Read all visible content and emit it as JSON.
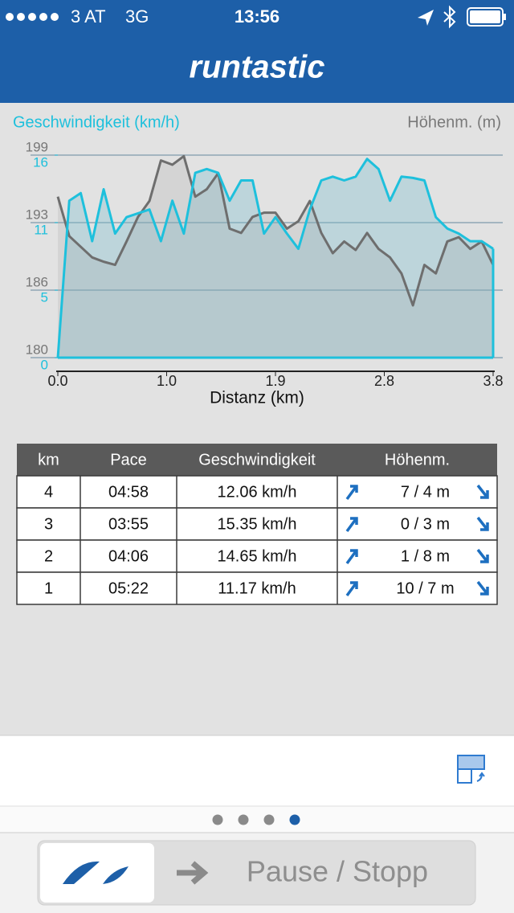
{
  "status_bar": {
    "carrier": "3 AT",
    "network": "3G",
    "time": "13:56"
  },
  "header": {
    "logo": "runtastic"
  },
  "chart_data": {
    "type": "line",
    "ylabel": "Geschwindigkeit (km/h)",
    "y2label": "Höhenm. (m)",
    "xlabel": "Distanz (km)",
    "x": [
      0,
      0.1,
      0.2,
      0.3,
      0.4,
      0.5,
      0.6,
      0.7,
      0.8,
      0.9,
      1.0,
      1.1,
      1.2,
      1.3,
      1.4,
      1.5,
      1.6,
      1.7,
      1.8,
      1.9,
      2.0,
      2.1,
      2.2,
      2.3,
      2.4,
      2.5,
      2.6,
      2.7,
      2.8,
      2.9,
      3.0,
      3.1,
      3.2,
      3.3,
      3.4,
      3.5,
      3.6,
      3.7,
      3.8
    ],
    "series": [
      {
        "color": "#1ec0dc",
        "fill": "rgba(120,190,205,0.35)",
        "values": [
          0,
          12.4,
          13.0,
          9.2,
          13.3,
          9.8,
          11.1,
          11.4,
          11.7,
          9.2,
          12.4,
          9.8,
          14.6,
          14.9,
          14.6,
          12.4,
          14.0,
          14.0,
          9.8,
          11.1,
          9.8,
          8.6,
          11.7,
          14.0,
          14.3,
          14.0,
          14.3,
          15.7,
          14.9,
          12.4,
          14.3,
          14.2,
          14.0,
          11.1,
          10.2,
          9.8,
          9.2,
          9.2,
          8.6
        ]
      },
      {
        "color": "#6e6e6e",
        "fill": "rgba(150,150,150,0.18)",
        "axis": "y2",
        "values": [
          195.1,
          191.4,
          190.4,
          189.4,
          189.0,
          188.7,
          190.9,
          193.2,
          194.7,
          198.5,
          198.1,
          198.9,
          195.1,
          195.8,
          197.3,
          192.1,
          191.7,
          193.2,
          193.6,
          193.6,
          192.1,
          192.8,
          194.7,
          191.7,
          189.8,
          190.9,
          190.1,
          191.7,
          190.2,
          189.4,
          187.9,
          184.9,
          188.7,
          187.9,
          190.9,
          191.3,
          190.2,
          190.9,
          188.7
        ]
      }
    ],
    "xlim": [
      0,
      3.8
    ],
    "xticks": [
      {
        "value": 0,
        "label": "0.0"
      },
      {
        "value": 0.95,
        "label": "1.0"
      },
      1.9,
      {
        "value": 2.85,
        "label": "2.8"
      },
      3.8
    ],
    "ylim": [
      0,
      16
    ],
    "yticks": [
      0,
      {
        "value": 5.33,
        "label": "5"
      },
      {
        "value": 10.67,
        "label": "11"
      },
      16
    ],
    "y2lim": [
      180,
      199
    ],
    "y2ticks": [
      180,
      {
        "value": 186.33,
        "label": "186"
      },
      {
        "value": 192.67,
        "label": "193"
      },
      199
    ],
    "grid": true
  },
  "table": {
    "header": [
      "km",
      "Pace",
      "Geschwindigkeit",
      "Höhenm."
    ],
    "rows": [
      [
        "4",
        "04:58",
        "12.06 km/h",
        "7 / 4 m"
      ],
      [
        "3",
        "03:55",
        "15.35 km/h",
        "0 / 3 m"
      ],
      [
        "2",
        "04:06",
        "14.65 km/h",
        "1 / 8 m"
      ],
      [
        "1",
        "05:22",
        "11.17 km/h",
        "10 / 7 m"
      ]
    ]
  },
  "button": {
    "label": "Pause / Stopp"
  }
}
